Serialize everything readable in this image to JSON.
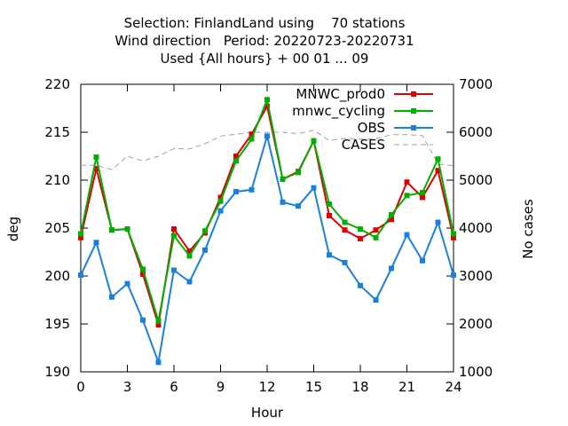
{
  "chart_data": {
    "type": "line",
    "title_lines": [
      "Selection: FinlandLand using    70 stations",
      "Wind direction   Period: 20220723-20220731",
      "Used {All hours} + 00 01 ... 09"
    ],
    "xlabel": "Hour",
    "ylabel": "deg",
    "y2label": "No cases",
    "xlim": [
      0,
      24
    ],
    "ylim": [
      190,
      220
    ],
    "y2lim": [
      1000,
      7000
    ],
    "xticks": [
      0,
      3,
      6,
      9,
      12,
      15,
      18,
      21,
      24
    ],
    "yticks": [
      190,
      195,
      200,
      205,
      210,
      215,
      220
    ],
    "y2ticks": [
      1000,
      2000,
      3000,
      4000,
      5000,
      6000,
      7000
    ],
    "grid": false,
    "legend_position": "top-right",
    "x": [
      0,
      1,
      2,
      3,
      4,
      5,
      6,
      7,
      8,
      9,
      10,
      11,
      12,
      13,
      14,
      15,
      16,
      17,
      18,
      19,
      20,
      21,
      22,
      23,
      24
    ],
    "series": [
      {
        "name": "MNWC_prod0",
        "axis": "left",
        "color": "#e00000",
        "marker": "square",
        "values": [
          204.0,
          211.2,
          204.8,
          204.9,
          200.2,
          194.9,
          204.9,
          202.6,
          204.5,
          208.2,
          212.5,
          214.8,
          217.7,
          210.1,
          210.9,
          214.1,
          206.3,
          204.8,
          203.9,
          204.8,
          205.9,
          209.8,
          208.2,
          211.0,
          204.0
        ]
      },
      {
        "name": "mnwc_cycling",
        "axis": "left",
        "color": "#00b000",
        "marker": "square",
        "values": [
          204.4,
          212.4,
          204.8,
          204.9,
          200.7,
          195.3,
          204.2,
          202.1,
          204.7,
          207.8,
          212.0,
          214.3,
          218.4,
          210.1,
          210.8,
          214.1,
          207.5,
          205.6,
          204.9,
          204.0,
          206.4,
          208.4,
          208.7,
          212.2,
          204.4
        ]
      },
      {
        "name": "OBS",
        "axis": "left",
        "color": "#1a80e0",
        "marker": "square",
        "values": [
          200.1,
          203.5,
          197.8,
          199.2,
          195.4,
          191.0,
          200.6,
          199.4,
          202.7,
          206.8,
          208.8,
          209.0,
          214.6,
          207.7,
          207.3,
          209.2,
          202.2,
          201.4,
          199.0,
          197.5,
          200.8,
          204.3,
          201.6,
          205.6,
          200.1
        ]
      },
      {
        "name": "CASES",
        "axis": "right",
        "color": "#a0a0a0",
        "marker": "none",
        "dashed": true,
        "values": [
          5310,
          5310,
          5220,
          5500,
          5400,
          5500,
          5660,
          5650,
          5760,
          5920,
          5960,
          6000,
          6000,
          6000,
          5970,
          6040,
          5830,
          5870,
          5860,
          5860,
          5950,
          5950,
          5930,
          5340,
          5300
        ]
      }
    ]
  }
}
